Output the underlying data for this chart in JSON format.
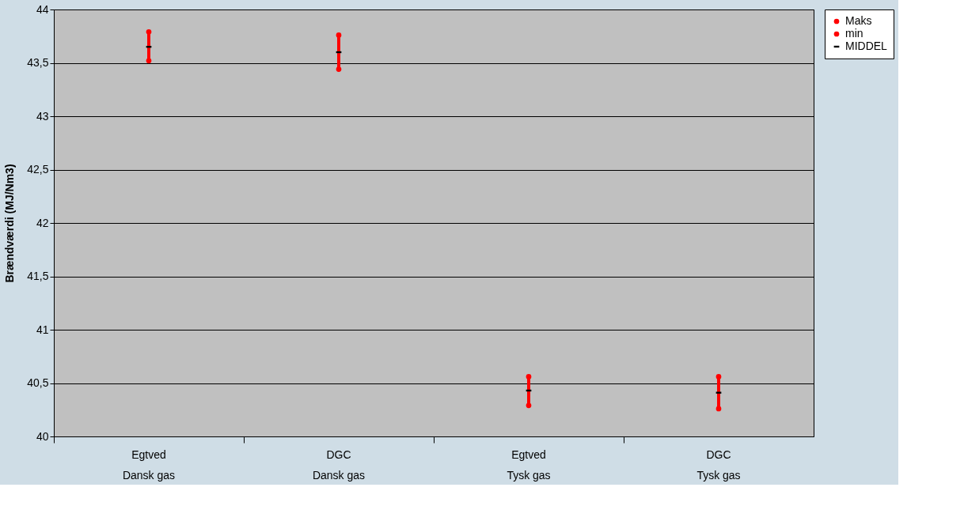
{
  "chart_data": {
    "type": "scatter",
    "ylabel": "Brændværdi (MJ/Nm3)",
    "categories": [
      "Egtved\nDansk gas",
      "DGC\nDansk gas",
      "Egtved\nTysk gas",
      "DGC\nTysk gas"
    ],
    "series": [
      {
        "name": "Maks",
        "color": "#ff0000",
        "marker": "circle",
        "values": [
          43.79,
          43.76,
          40.56,
          40.56
        ]
      },
      {
        "name": "min",
        "color": "#ff0000",
        "marker": "circle",
        "values": [
          43.52,
          43.44,
          40.29,
          40.26
        ]
      },
      {
        "name": "MIDDEL",
        "color": "#000000",
        "values": [
          43.65,
          43.6,
          40.43,
          40.41
        ]
      }
    ],
    "ylim": [
      40,
      44
    ],
    "yticks": [
      40,
      {
        "value": 40.5,
        "label": "40,5"
      },
      41,
      {
        "value": 41.5,
        "label": "41,5"
      },
      42,
      {
        "value": 42.5,
        "label": "42,5"
      },
      43,
      {
        "value": 43.5,
        "label": "43,5"
      },
      44
    ],
    "grid": "y",
    "legend": "right"
  }
}
